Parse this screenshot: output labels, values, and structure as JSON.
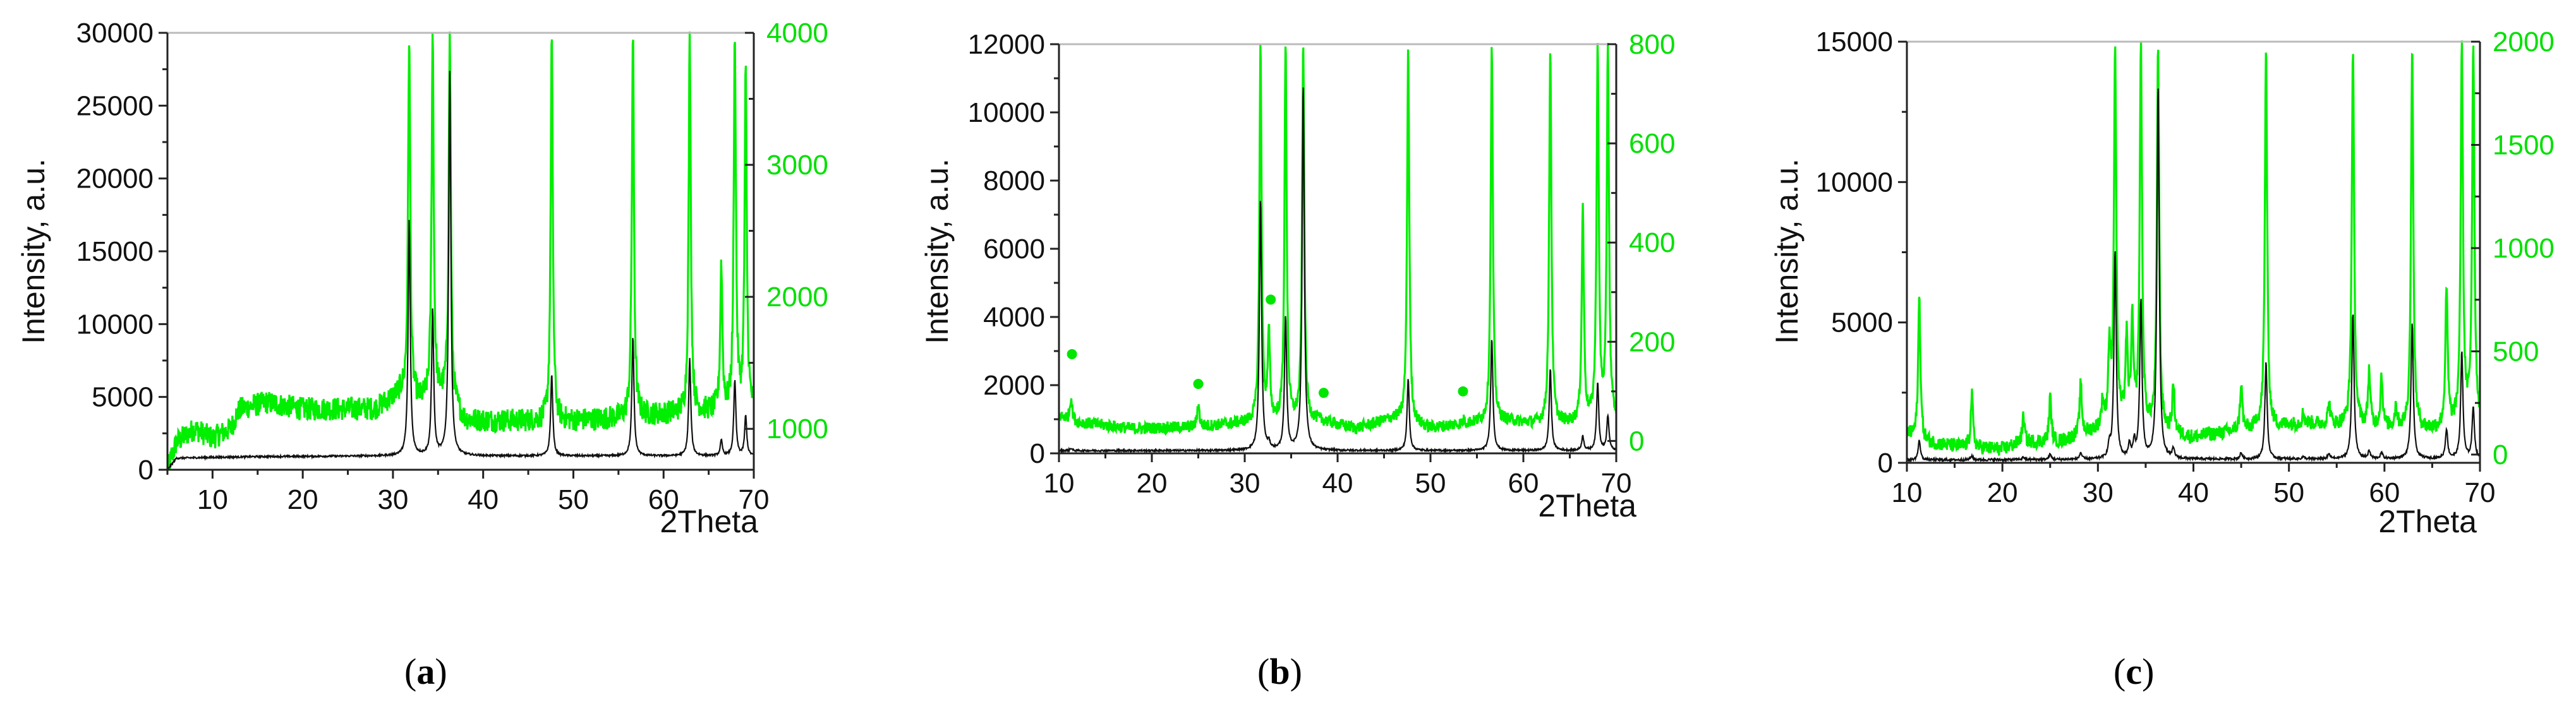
{
  "colors": {
    "primary_series": "#111111",
    "secondary_series": "#00ee00",
    "secondary_axis": "#00e000",
    "axis": "#222222",
    "top_border": "#bbbbbb",
    "dot_marker": "#00e600"
  },
  "panels": [
    {
      "caption_open": "(",
      "caption_letter": "a",
      "caption_close": ")",
      "xlabel": "2Theta",
      "ylabel": "Intensity, a.u."
    },
    {
      "caption_open": "(",
      "caption_letter": "b",
      "caption_close": ")",
      "xlabel": "2Theta",
      "ylabel": "Intensity, a.u."
    },
    {
      "caption_open": "(",
      "caption_letter": "c",
      "caption_close": ")",
      "xlabel": "2Theta",
      "ylabel": "Intensity, a.u."
    }
  ],
  "chart_data": [
    {
      "type": "line",
      "title": "(a)",
      "xlabel": "2Theta",
      "ylabel": "Intensity, a.u.",
      "xlim": [
        5,
        70
      ],
      "xticks": [
        10,
        20,
        30,
        40,
        50,
        60,
        70
      ],
      "ylim_left": [
        0,
        30000
      ],
      "yticks_left": [
        0,
        5000,
        10000,
        15000,
        20000,
        25000,
        30000
      ],
      "ylim_right": [
        690,
        4000
      ],
      "yticks_right": [
        1000,
        2000,
        3000,
        4000
      ],
      "grid": false,
      "legend": "none",
      "series": [
        {
          "name": "black pattern (left axis)",
          "axis": "left",
          "baseline": [
            [
              5,
              0
            ],
            [
              6,
              800
            ],
            [
              10,
              850
            ],
            [
              15,
              900
            ],
            [
              30,
              950
            ],
            [
              70,
              950
            ]
          ],
          "noise": 60,
          "peaks": [
            [
              31.8,
              17300
            ],
            [
              34.4,
              11000
            ],
            [
              36.3,
              27600
            ],
            [
              47.6,
              6600
            ],
            [
              56.6,
              9200
            ],
            [
              62.9,
              7700
            ],
            [
              66.4,
              2000
            ],
            [
              67.9,
              6200
            ],
            [
              69.1,
              3700
            ]
          ]
        },
        {
          "name": "green pattern (right axis, magnified)",
          "axis": "right",
          "baseline": [
            [
              5,
              690
            ],
            [
              6,
              900
            ],
            [
              8,
              1000
            ],
            [
              10,
              930
            ],
            [
              12,
              1000
            ],
            [
              13,
              1150
            ],
            [
              16,
              1200
            ],
            [
              20,
              1150
            ],
            [
              28,
              1150
            ],
            [
              31,
              1280
            ],
            [
              33,
              1200
            ],
            [
              36,
              1250
            ],
            [
              38,
              1060
            ],
            [
              45,
              1060
            ],
            [
              50,
              1060
            ],
            [
              55,
              1080
            ],
            [
              60,
              1110
            ],
            [
              65,
              1130
            ],
            [
              70,
              1150
            ]
          ],
          "noise": 90,
          "peaks": [
            [
              31.8,
              4000
            ],
            [
              34.4,
              4000
            ],
            [
              36.3,
              4000
            ],
            [
              47.6,
              4000
            ],
            [
              56.6,
              4000
            ],
            [
              62.9,
              4000
            ],
            [
              66.4,
              2250
            ],
            [
              67.9,
              4000
            ],
            [
              69.1,
              3700
            ]
          ]
        }
      ]
    },
    {
      "type": "line",
      "title": "(b)",
      "xlabel": "2Theta",
      "ylabel": "Intensity, a.u.",
      "xlim": [
        10,
        70
      ],
      "xticks": [
        10,
        20,
        30,
        40,
        50,
        60,
        70
      ],
      "ylim_left": [
        0,
        12000
      ],
      "yticks_left": [
        0,
        2000,
        4000,
        6000,
        8000,
        10000,
        12000
      ],
      "ylim_right": [
        -25,
        800
      ],
      "yticks_right": [
        0,
        200,
        400,
        600,
        800
      ],
      "grid": false,
      "legend": "none",
      "markers": [
        {
          "symbol": "dot",
          "x": 11.4,
          "y_right": 175
        },
        {
          "symbol": "dot",
          "x": 25.0,
          "y_right": 115
        },
        {
          "symbol": "dot",
          "x": 32.8,
          "y_right": 285
        },
        {
          "symbol": "dot",
          "x": 38.5,
          "y_right": 97
        },
        {
          "symbol": "dot",
          "x": 53.5,
          "y_right": 100
        }
      ],
      "series": [
        {
          "name": "black pattern (left axis)",
          "axis": "left",
          "baseline": [
            [
              10,
              80
            ],
            [
              70,
              80
            ]
          ],
          "noise": 25,
          "peaks": [
            [
              11.3,
              150
            ],
            [
              31.7,
              7500
            ],
            [
              32.6,
              250
            ],
            [
              34.4,
              4000
            ],
            [
              36.3,
              10900
            ],
            [
              47.6,
              2200
            ],
            [
              56.6,
              3400
            ],
            [
              62.9,
              2500
            ],
            [
              66.4,
              500
            ],
            [
              68.0,
              2100
            ],
            [
              69.1,
              1100
            ]
          ]
        },
        {
          "name": "green pattern (right axis, magnified)",
          "axis": "right",
          "baseline": [
            [
              10,
              50
            ],
            [
              12,
              38
            ],
            [
              18,
              25
            ],
            [
              25,
              28
            ],
            [
              29,
              35
            ],
            [
              38,
              40
            ],
            [
              42,
              25
            ],
            [
              46,
              45
            ],
            [
              50,
              25
            ],
            [
              54,
              35
            ],
            [
              58,
              40
            ],
            [
              61,
              35
            ],
            [
              65,
              35
            ],
            [
              70,
              40
            ]
          ],
          "noise": 12,
          "peaks": [
            [
              11.3,
              90
            ],
            [
              25.0,
              75
            ],
            [
              31.7,
              800
            ],
            [
              32.6,
              210
            ],
            [
              34.4,
              800
            ],
            [
              36.3,
              800
            ],
            [
              47.6,
              800
            ],
            [
              53.6,
              40
            ],
            [
              56.6,
              800
            ],
            [
              62.9,
              800
            ],
            [
              66.4,
              470
            ],
            [
              68.0,
              800
            ],
            [
              69.1,
              800
            ]
          ]
        }
      ]
    },
    {
      "type": "line",
      "title": "(c)",
      "xlabel": "2Theta",
      "ylabel": "Intensity, a.u.",
      "xlim": [
        10,
        70
      ],
      "xticks": [
        10,
        20,
        30,
        40,
        50,
        60,
        70
      ],
      "ylim_left": [
        0,
        15000
      ],
      "yticks_left": [
        0,
        5000,
        10000,
        15000
      ],
      "ylim_right": [
        -40,
        2000
      ],
      "yticks_right": [
        0,
        500,
        1000,
        1500,
        2000
      ],
      "grid": false,
      "legend": "none",
      "series": [
        {
          "name": "black pattern (left axis)",
          "axis": "left",
          "baseline": [
            [
              10,
              100
            ],
            [
              70,
              150
            ]
          ],
          "noise": 40,
          "peaks": [
            [
              11.3,
              800
            ],
            [
              16.8,
              250
            ],
            [
              22.2,
              200
            ],
            [
              25.0,
              300
            ],
            [
              28.2,
              350
            ],
            [
              31.2,
              550
            ],
            [
              31.8,
              7600
            ],
            [
              33.3,
              600
            ],
            [
              33.8,
              700
            ],
            [
              34.5,
              5800
            ],
            [
              36.3,
              13500
            ],
            [
              37.9,
              450
            ],
            [
              45.0,
              350
            ],
            [
              47.6,
              3600
            ],
            [
              51.5,
              200
            ],
            [
              54.2,
              300
            ],
            [
              56.7,
              5400
            ],
            [
              58.4,
              400
            ],
            [
              59.7,
              350
            ],
            [
              62.9,
              5000
            ],
            [
              66.5,
              1200
            ],
            [
              68.1,
              4000
            ],
            [
              69.3,
              2000
            ]
          ]
        },
        {
          "name": "green pattern (right axis, magnified)",
          "axis": "right",
          "baseline": [
            [
              10,
              100
            ],
            [
              12,
              60
            ],
            [
              15,
              40
            ],
            [
              20,
              25
            ],
            [
              22,
              60
            ],
            [
              26,
              60
            ],
            [
              30,
              120
            ],
            [
              32,
              150
            ],
            [
              40,
              80
            ],
            [
              44,
              110
            ],
            [
              48,
              130
            ],
            [
              52,
              150
            ],
            [
              56,
              140
            ],
            [
              60,
              130
            ],
            [
              65,
              120
            ],
            [
              70,
              160
            ]
          ],
          "noise": 35,
          "peaks": [
            [
              11.3,
              770
            ],
            [
              16.8,
              290
            ],
            [
              22.2,
              180
            ],
            [
              25.0,
              280
            ],
            [
              28.2,
              340
            ],
            [
              30.5,
              250
            ],
            [
              31.2,
              500
            ],
            [
              31.8,
              2000
            ],
            [
              33.0,
              550
            ],
            [
              33.6,
              620
            ],
            [
              34.5,
              2000
            ],
            [
              36.3,
              2000
            ],
            [
              37.9,
              330
            ],
            [
              41.5,
              100
            ],
            [
              45.0,
              340
            ],
            [
              46.6,
              150
            ],
            [
              47.6,
              2000
            ],
            [
              50.0,
              150
            ],
            [
              51.5,
              200
            ],
            [
              54.2,
              250
            ],
            [
              56.7,
              2000
            ],
            [
              58.4,
              400
            ],
            [
              59.7,
              380
            ],
            [
              61.2,
              230
            ],
            [
              62.9,
              2000
            ],
            [
              66.5,
              800
            ],
            [
              68.1,
              2000
            ],
            [
              69.3,
              2000
            ]
          ]
        }
      ]
    }
  ]
}
